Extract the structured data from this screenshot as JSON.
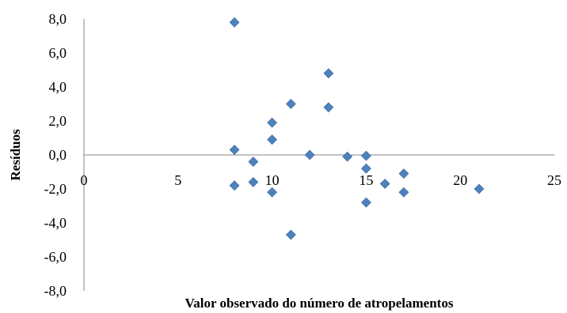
{
  "chart_data": {
    "type": "scatter",
    "xlabel": "Valor observado do número de atropelamentos",
    "ylabel": "Resíduos",
    "xlim": [
      0,
      25
    ],
    "ylim": [
      -8,
      8
    ],
    "x_ticks": [
      "0",
      "5",
      "10",
      "15",
      "20",
      "25"
    ],
    "y_ticks": [
      "8,0",
      "6,0",
      "4,0",
      "2,0",
      "0,0",
      "-2,0",
      "-4,0",
      "-6,0",
      "-8,0"
    ],
    "grid": false,
    "legend": "none",
    "series": [
      {
        "color": "#4F81BD",
        "marker": "diamond",
        "points": [
          {
            "x": 8,
            "y": 7.8
          },
          {
            "x": 8,
            "y": 0.3
          },
          {
            "x": 8,
            "y": -1.8
          },
          {
            "x": 9,
            "y": -0.4
          },
          {
            "x": 9,
            "y": -1.6
          },
          {
            "x": 10,
            "y": 1.9
          },
          {
            "x": 10,
            "y": 0.9
          },
          {
            "x": 10,
            "y": -2.2
          },
          {
            "x": 11,
            "y": 3.0
          },
          {
            "x": 11,
            "y": -4.7
          },
          {
            "x": 12,
            "y": 0.0
          },
          {
            "x": 13,
            "y": 4.8
          },
          {
            "x": 13,
            "y": 2.8
          },
          {
            "x": 14,
            "y": -0.1
          },
          {
            "x": 15,
            "y": -0.05
          },
          {
            "x": 15,
            "y": -0.8
          },
          {
            "x": 15,
            "y": -2.8
          },
          {
            "x": 16,
            "y": -1.7
          },
          {
            "x": 17,
            "y": -1.1
          },
          {
            "x": 17,
            "y": -2.2
          },
          {
            "x": 21,
            "y": -2.0
          }
        ]
      }
    ]
  }
}
